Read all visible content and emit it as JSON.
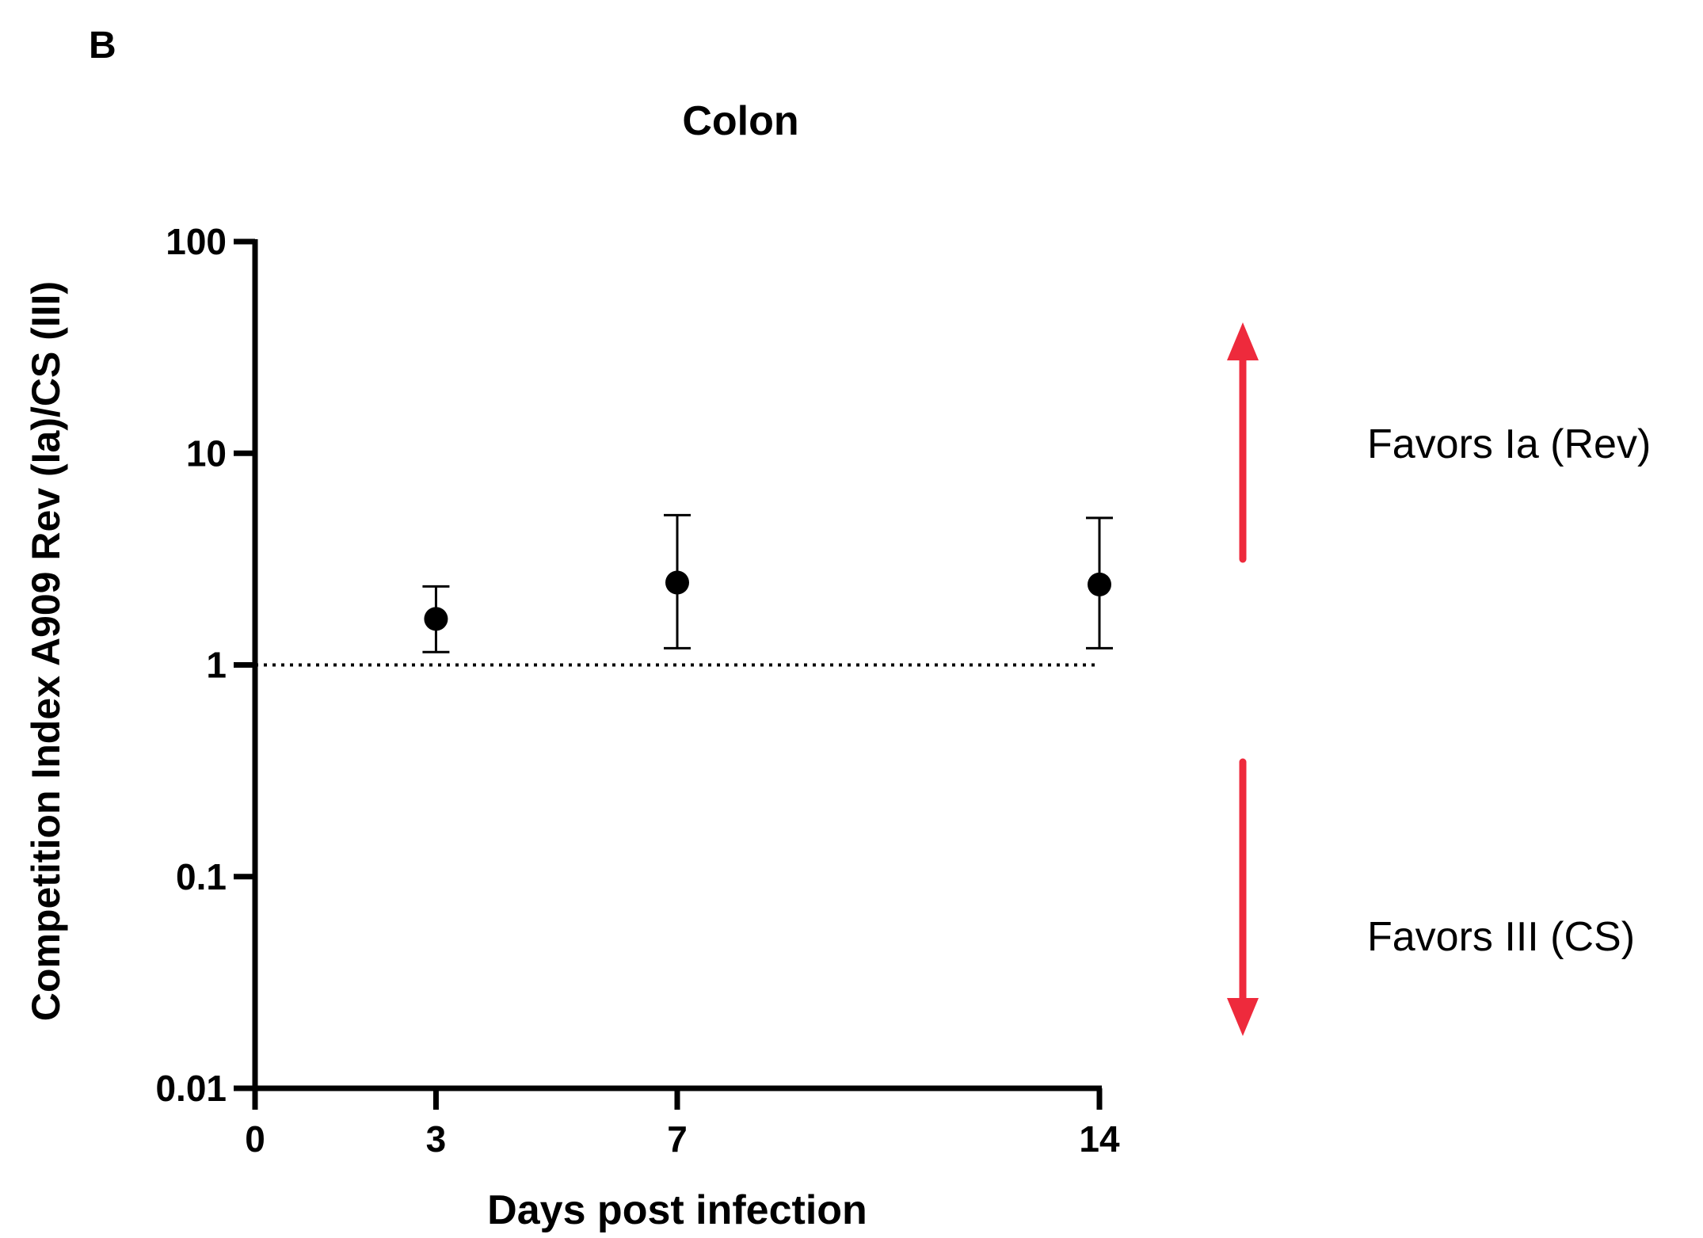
{
  "panel_label": "B",
  "annotations": {
    "favors_up": "Favors Ia (Rev)",
    "favors_down": "Favors III (CS)"
  },
  "colors": {
    "arrow": "#ee2a3c",
    "ink": "#000000"
  },
  "chart_data": {
    "type": "scatter",
    "title": "Colon",
    "xlabel": "Days post infection",
    "ylabel": "Competition Index A909 Rev (Ia)/CS (III)",
    "x_ticks": [
      "0",
      "3",
      "7",
      "14"
    ],
    "y_ticks": [
      "0.01",
      "0.1",
      "1",
      "10",
      "100"
    ],
    "xlim": [
      0,
      14
    ],
    "ylim": [
      0.01,
      100
    ],
    "y_scale": "log",
    "reference_line": {
      "y": 1,
      "style": "dotted"
    },
    "series": [
      {
        "marker": "circle",
        "points": [
          {
            "x": 3,
            "y": 1.65,
            "err_low": 1.15,
            "err_high": 2.35
          },
          {
            "x": 7,
            "y": 2.45,
            "err_low": 1.2,
            "err_high": 5.1
          },
          {
            "x": 14,
            "y": 2.4,
            "err_low": 1.2,
            "err_high": 4.95
          }
        ]
      }
    ],
    "grid": false,
    "legend": "none"
  }
}
